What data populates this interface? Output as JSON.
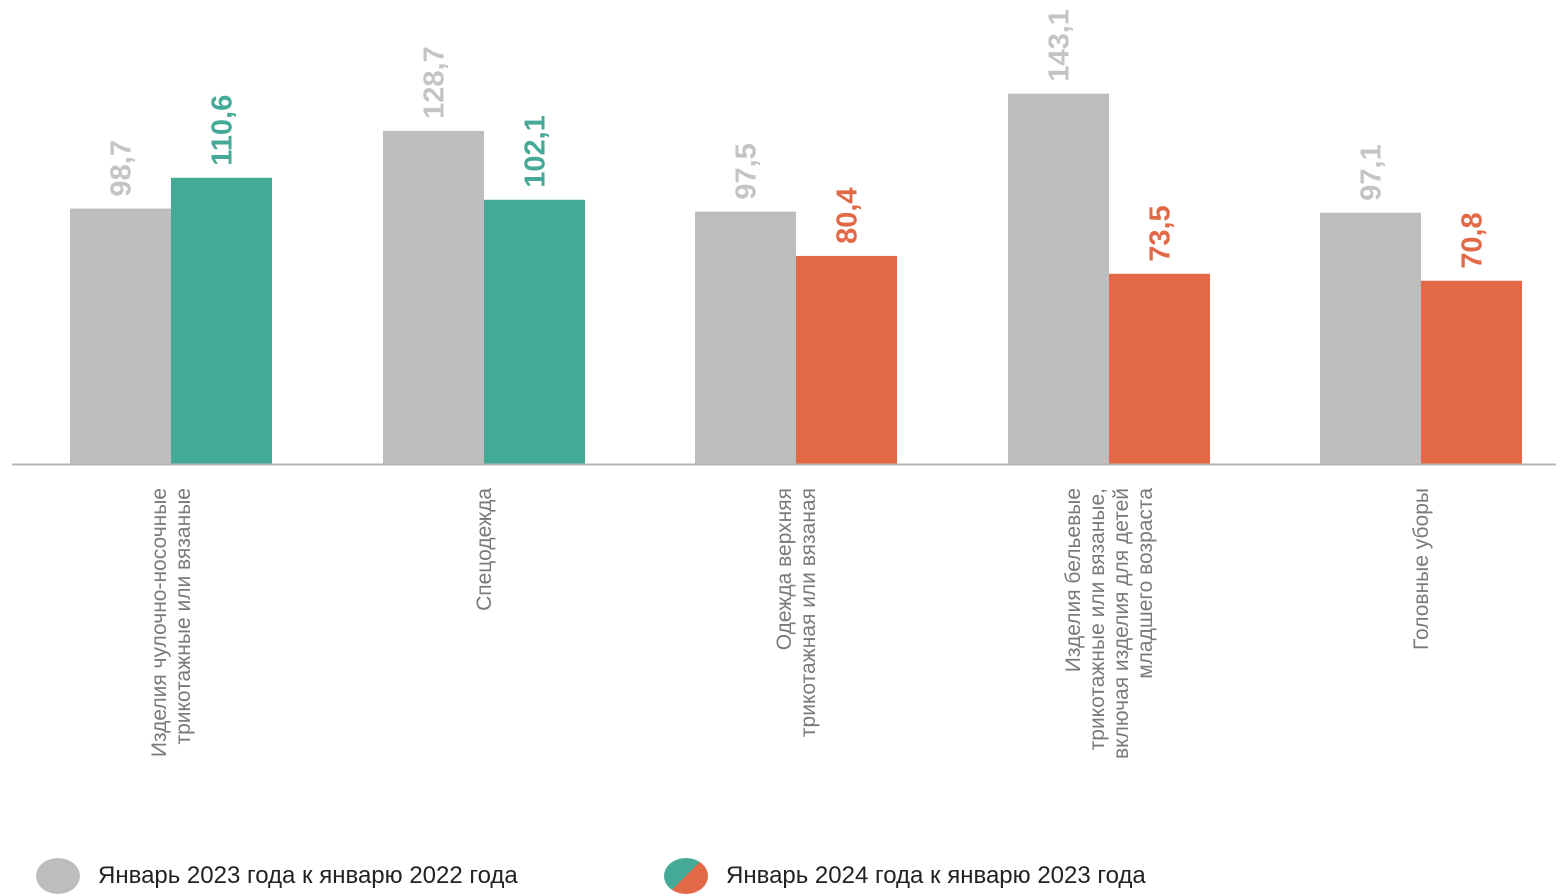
{
  "chart_data": {
    "type": "bar",
    "categories": [
      [
        "Изделия чулочно-носочные",
        "трикотажные или вязаные"
      ],
      [
        "Спецодежда"
      ],
      [
        "Одежда верхняя",
        "трикотажная или вязаная"
      ],
      [
        "Изделия бельевые",
        "трикотажные или вязаные,",
        "включая  изделия  для детей",
        "младшего возраста"
      ],
      [
        "Головные уборы"
      ]
    ],
    "series": [
      {
        "name": "Январь 2023 года к  январю 2022 года",
        "values": [
          98.7,
          128.7,
          97.5,
          143.1,
          97.1
        ],
        "labels": [
          "98,7",
          "128,7",
          "97,5",
          "143,1",
          "97,1"
        ],
        "color": "#bdbdbd"
      },
      {
        "name": "Январь 2024 года к январю 2023 года",
        "values": [
          110.6,
          102.1,
          80.4,
          73.5,
          70.8
        ],
        "labels": [
          "110,6",
          "102,1",
          "80,4",
          "73,5",
          "70,8"
        ],
        "colors": [
          "#44a997",
          "#44a997",
          "#e36846",
          "#e36846",
          "#e36846"
        ]
      }
    ],
    "title": "",
    "xlabel": "",
    "ylabel": "",
    "ylim": [
      0,
      170
    ],
    "grid": false,
    "legend_position": "bottom",
    "colors": {
      "gray": "#bdbdbd",
      "gray_label": "#c4c4c4",
      "green": "#44a997",
      "orange": "#e36846",
      "axis": "#b5b5b5"
    }
  }
}
